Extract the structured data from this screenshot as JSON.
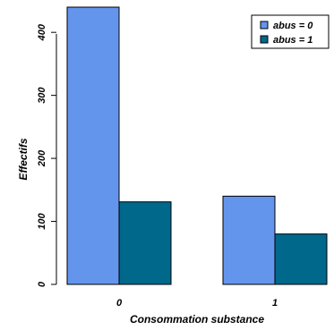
{
  "chart_data": {
    "type": "bar",
    "categories": [
      "0",
      "1"
    ],
    "series": [
      {
        "name": "abus = 0",
        "values": [
          440,
          140
        ],
        "color": "#6495ED"
      },
      {
        "name": "abus = 1",
        "values": [
          131,
          80
        ],
        "color": "#00688B"
      }
    ],
    "title": "",
    "xlabel": "Consommation substance",
    "ylabel": "Effectifs",
    "ylim": [
      0,
      440
    ],
    "yticks": [
      "0",
      "100",
      "200",
      "300",
      "400"
    ],
    "legend_position": "top-right",
    "grid": false
  }
}
